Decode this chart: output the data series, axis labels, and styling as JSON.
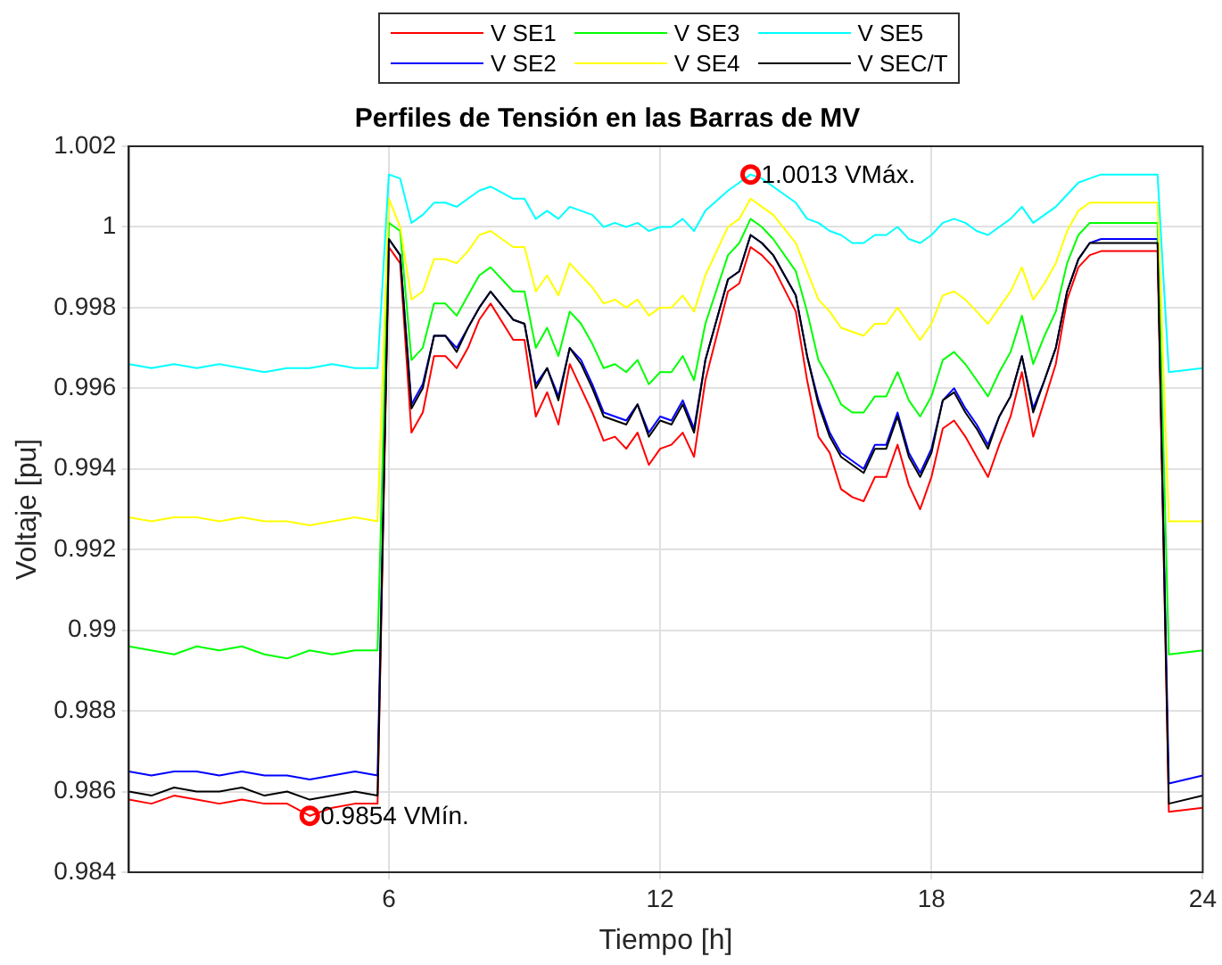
{
  "chart_data": {
    "type": "line",
    "title": "Perfiles de Tensión en las Barras de MV",
    "xlabel": "Tiempo [h]",
    "ylabel": "Voltaje [pu]",
    "x": [
      0.25,
      0.75,
      1.25,
      1.75,
      2.25,
      2.75,
      3.25,
      3.75,
      4.25,
      4.75,
      5.25,
      5.75,
      6.0,
      6.25,
      6.5,
      6.75,
      7.0,
      7.25,
      7.5,
      7.75,
      8.0,
      8.25,
      8.75,
      9.0,
      9.25,
      9.5,
      9.75,
      10.0,
      10.25,
      10.5,
      10.75,
      11.0,
      11.25,
      11.5,
      11.75,
      12.0,
      12.25,
      12.5,
      12.75,
      13.0,
      13.5,
      13.75,
      14.0,
      14.25,
      14.5,
      15.0,
      15.25,
      15.5,
      15.75,
      16.0,
      16.25,
      16.5,
      16.75,
      17.0,
      17.25,
      17.5,
      17.75,
      18.0,
      18.25,
      18.5,
      18.75,
      19.0,
      19.25,
      19.5,
      19.75,
      20.0,
      20.25,
      20.5,
      20.75,
      21.0,
      21.25,
      21.5,
      21.75,
      23.0,
      23.25,
      24.0
    ],
    "series": [
      {
        "name": "V SE1",
        "color": "#ff0000",
        "values": [
          0.9858,
          0.9857,
          0.9859,
          0.9858,
          0.9857,
          0.9858,
          0.9857,
          0.9857,
          0.9854,
          0.9856,
          0.9857,
          0.9857,
          0.9995,
          0.9991,
          0.9949,
          0.9954,
          0.9968,
          0.9968,
          0.9965,
          0.997,
          0.9977,
          0.9981,
          0.9972,
          0.9972,
          0.9953,
          0.9959,
          0.9951,
          0.9966,
          0.996,
          0.9954,
          0.9947,
          0.9948,
          0.9945,
          0.9949,
          0.9941,
          0.9945,
          0.9946,
          0.9949,
          0.9943,
          0.9962,
          0.9984,
          0.9986,
          0.9995,
          0.9993,
          0.999,
          0.9979,
          0.9962,
          0.9948,
          0.9944,
          0.9935,
          0.9933,
          0.9932,
          0.9938,
          0.9938,
          0.9946,
          0.9936,
          0.993,
          0.9938,
          0.995,
          0.9952,
          0.9948,
          0.9943,
          0.9938,
          0.9946,
          0.9953,
          0.9964,
          0.9948,
          0.9957,
          0.9966,
          0.9982,
          0.999,
          0.9993,
          0.9994,
          0.9994,
          0.9855,
          0.9856
        ]
      },
      {
        "name": "V SE2",
        "color": "#0000ff",
        "values": [
          0.9865,
          0.9864,
          0.9865,
          0.9865,
          0.9864,
          0.9865,
          0.9864,
          0.9864,
          0.9863,
          0.9864,
          0.9865,
          0.9864,
          0.9997,
          0.9993,
          0.9956,
          0.9961,
          0.9973,
          0.9973,
          0.997,
          0.9975,
          0.998,
          0.9984,
          0.9977,
          0.9976,
          0.9961,
          0.9965,
          0.9958,
          0.997,
          0.9967,
          0.9961,
          0.9954,
          0.9953,
          0.9952,
          0.9956,
          0.9949,
          0.9953,
          0.9952,
          0.9957,
          0.995,
          0.9967,
          0.9987,
          0.9989,
          0.9998,
          0.9996,
          0.9993,
          0.9983,
          0.9968,
          0.9957,
          0.9949,
          0.9944,
          0.9942,
          0.994,
          0.9946,
          0.9946,
          0.9954,
          0.9944,
          0.9939,
          0.9945,
          0.9957,
          0.996,
          0.9955,
          0.9951,
          0.9946,
          0.9953,
          0.9958,
          0.9968,
          0.9955,
          0.9962,
          0.997,
          0.9984,
          0.9992,
          0.9996,
          0.9997,
          0.9997,
          0.9862,
          0.9864
        ]
      },
      {
        "name": "V SE3",
        "color": "#00ff00",
        "values": [
          0.9896,
          0.9895,
          0.9894,
          0.9896,
          0.9895,
          0.9896,
          0.9894,
          0.9893,
          0.9895,
          0.9894,
          0.9895,
          0.9895,
          1.0001,
          0.9999,
          0.9967,
          0.997,
          0.9981,
          0.9981,
          0.9978,
          0.9983,
          0.9988,
          0.999,
          0.9984,
          0.9984,
          0.997,
          0.9975,
          0.9968,
          0.9979,
          0.9976,
          0.9971,
          0.9965,
          0.9966,
          0.9964,
          0.9967,
          0.9961,
          0.9964,
          0.9964,
          0.9968,
          0.9962,
          0.9976,
          0.9993,
          0.9996,
          1.0002,
          1.0,
          0.9997,
          0.9989,
          0.9979,
          0.9967,
          0.9962,
          0.9956,
          0.9954,
          0.9954,
          0.9958,
          0.9958,
          0.9964,
          0.9957,
          0.9953,
          0.9958,
          0.9967,
          0.9969,
          0.9966,
          0.9962,
          0.9958,
          0.9964,
          0.9969,
          0.9978,
          0.9966,
          0.9973,
          0.9979,
          0.9991,
          0.9998,
          1.0001,
          1.0001,
          1.0001,
          0.9894,
          0.9895
        ]
      },
      {
        "name": "V SE4",
        "color": "#ffff00",
        "values": [
          0.9928,
          0.9927,
          0.9928,
          0.9928,
          0.9927,
          0.9928,
          0.9927,
          0.9927,
          0.9926,
          0.9927,
          0.9928,
          0.9927,
          1.0007,
          1.0,
          0.9982,
          0.9984,
          0.9992,
          0.9992,
          0.9991,
          0.9994,
          0.9998,
          0.9999,
          0.9995,
          0.9995,
          0.9984,
          0.9988,
          0.9983,
          0.9991,
          0.9988,
          0.9985,
          0.9981,
          0.9982,
          0.998,
          0.9982,
          0.9978,
          0.998,
          0.998,
          0.9983,
          0.9979,
          0.9988,
          1.0,
          1.0002,
          1.0007,
          1.0005,
          1.0003,
          0.9996,
          0.9989,
          0.9982,
          0.9979,
          0.9975,
          0.9974,
          0.9973,
          0.9976,
          0.9976,
          0.998,
          0.9976,
          0.9972,
          0.9976,
          0.9983,
          0.9984,
          0.9982,
          0.9979,
          0.9976,
          0.998,
          0.9984,
          0.999,
          0.9982,
          0.9986,
          0.9991,
          0.9999,
          1.0004,
          1.0006,
          1.0006,
          1.0006,
          0.9927,
          0.9927
        ]
      },
      {
        "name": "V SE5",
        "color": "#00ffff",
        "values": [
          0.9966,
          0.9965,
          0.9966,
          0.9965,
          0.9966,
          0.9965,
          0.9964,
          0.9965,
          0.9965,
          0.9966,
          0.9965,
          0.9965,
          1.0013,
          1.0012,
          1.0001,
          1.0003,
          1.0006,
          1.0006,
          1.0005,
          1.0007,
          1.0009,
          1.001,
          1.0007,
          1.0007,
          1.0002,
          1.0004,
          1.0002,
          1.0005,
          1.0004,
          1.0003,
          1.0,
          1.0001,
          1.0,
          1.0001,
          0.9999,
          1.0,
          1.0,
          1.0002,
          0.9999,
          1.0004,
          1.0009,
          1.0011,
          1.0013,
          1.0012,
          1.001,
          1.0006,
          1.0002,
          1.0001,
          0.9999,
          0.9998,
          0.9996,
          0.9996,
          0.9998,
          0.9998,
          1.0,
          0.9997,
          0.9996,
          0.9998,
          1.0001,
          1.0002,
          1.0001,
          0.9999,
          0.9998,
          1.0,
          1.0002,
          1.0005,
          1.0001,
          1.0003,
          1.0005,
          1.0008,
          1.0011,
          1.0012,
          1.0013,
          1.0013,
          0.9964,
          0.9965
        ]
      },
      {
        "name": "V SEC/T",
        "color": "#000000",
        "values": [
          0.986,
          0.9859,
          0.9861,
          0.986,
          0.986,
          0.9861,
          0.9859,
          0.986,
          0.9858,
          0.9859,
          0.986,
          0.9859,
          0.9997,
          0.9993,
          0.9955,
          0.996,
          0.9973,
          0.9973,
          0.9969,
          0.9975,
          0.998,
          0.9984,
          0.9977,
          0.9976,
          0.996,
          0.9965,
          0.9957,
          0.997,
          0.9966,
          0.996,
          0.9953,
          0.9952,
          0.9951,
          0.9956,
          0.9948,
          0.9952,
          0.9951,
          0.9956,
          0.9949,
          0.9967,
          0.9987,
          0.9989,
          0.9998,
          0.9996,
          0.9993,
          0.9983,
          0.9968,
          0.9956,
          0.9948,
          0.9943,
          0.9941,
          0.9939,
          0.9945,
          0.9945,
          0.9953,
          0.9943,
          0.9938,
          0.9944,
          0.9957,
          0.9959,
          0.9954,
          0.995,
          0.9945,
          0.9953,
          0.9958,
          0.9968,
          0.9954,
          0.9962,
          0.997,
          0.9984,
          0.9992,
          0.9996,
          0.9996,
          0.9996,
          0.9857,
          0.9859
        ]
      }
    ],
    "xlim": [
      0.25,
      24
    ],
    "xticks": [
      6,
      12,
      18,
      24
    ],
    "ylim": [
      0.984,
      1.002
    ],
    "yticks": [
      0.984,
      0.986,
      0.988,
      0.99,
      0.992,
      0.994,
      0.996,
      0.998,
      1,
      1.002
    ],
    "annotations": [
      {
        "text": "0.9854 VMín.",
        "x": 4.25,
        "y": 0.9854
      },
      {
        "text": "1.0013 VMáx.",
        "x": 14,
        "y": 1.0013
      }
    ],
    "grid": true,
    "legend": "top",
    "marker": "none",
    "line_style": "solid"
  }
}
